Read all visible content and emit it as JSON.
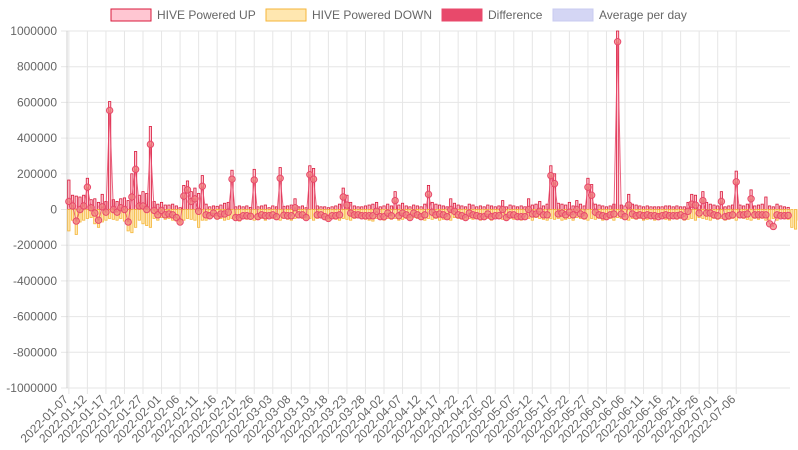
{
  "chart_data": {
    "type": "bar",
    "title": "",
    "xlabel": "",
    "ylabel": "",
    "ylim": [
      -1000000,
      1000000
    ],
    "y_ticks": [
      "1000000",
      "800000",
      "600000",
      "400000",
      "200000",
      "0",
      "-200000",
      "-400000",
      "-600000",
      "-800000",
      "-1000000"
    ],
    "x_tick_labels": [
      "2022-01-07",
      "2022-01-12",
      "2022-01-17",
      "2022-01-22",
      "2022-01-27",
      "2022-02-01",
      "2022-02-06",
      "2022-02-11",
      "2022-02-16",
      "2022-02-21",
      "2022-02-26",
      "2022-03-03",
      "2022-03-08",
      "2022-03-13",
      "2022-03-18",
      "2022-03-23",
      "2022-03-28",
      "2022-04-02",
      "2022-04-07",
      "2022-04-12",
      "2022-04-17",
      "2022-04-22",
      "2022-04-27",
      "2022-05-02",
      "2022-05-07",
      "2022-05-12",
      "2022-05-17",
      "2022-05-22",
      "2022-05-27",
      "2022-06-01",
      "2022-06-06",
      "2022-06-11",
      "2022-06-16",
      "2022-06-21",
      "2022-06-26",
      "2022-07-01",
      "2022-07-06"
    ],
    "start_date": "2022-01-07",
    "grid": true,
    "legend_position": "top",
    "colors": {
      "up_fill": "#ffc6d2",
      "up_border": "#d81b3c",
      "down_fill": "#ffe7b0",
      "down_border": "#f5b63a",
      "diff": "#e8496b",
      "avg_fill": "#d4d6f4",
      "avg_border": "#c8cbf0",
      "point_fill": "#f08080",
      "point_border": "#e8496b",
      "grid": "#e6e6e6",
      "axis_text": "#666666"
    },
    "series": [
      {
        "name": "HIVE Powered UP",
        "values": [
          165000,
          80000,
          75000,
          70000,
          80000,
          175000,
          55000,
          60000,
          40000,
          85000,
          45000,
          605000,
          55000,
          45000,
          60000,
          65000,
          50000,
          200000,
          325000,
          80000,
          100000,
          90000,
          465000,
          45000,
          30000,
          40000,
          25000,
          25000,
          30000,
          20000,
          10000,
          135000,
          160000,
          100000,
          120000,
          90000,
          190000,
          30000,
          15000,
          20000,
          18000,
          25000,
          35000,
          40000,
          220000,
          15000,
          20000,
          15000,
          20000,
          12000,
          225000,
          15000,
          20000,
          25000,
          10000,
          20000,
          15000,
          235000,
          18000,
          20000,
          25000,
          60000,
          15000,
          20000,
          10000,
          245000,
          230000,
          20000,
          15000,
          15000,
          10000,
          15000,
          20000,
          30000,
          120000,
          80000,
          40000,
          20000,
          15000,
          15000,
          20000,
          25000,
          30000,
          40000,
          15000,
          20000,
          30000,
          20000,
          100000,
          25000,
          35000,
          20000,
          15000,
          25000,
          20000,
          15000,
          30000,
          135000,
          40000,
          30000,
          25000,
          20000,
          15000,
          60000,
          35000,
          25000,
          20000,
          15000,
          30000,
          25000,
          15000,
          20000,
          15000,
          25000,
          20000,
          15000,
          20000,
          50000,
          15000,
          25000,
          20000,
          15000,
          20000,
          15000,
          60000,
          25000,
          30000,
          45000,
          20000,
          30000,
          245000,
          200000,
          35000,
          30000,
          25000,
          40000,
          20000,
          50000,
          30000,
          20000,
          175000,
          140000,
          30000,
          25000,
          20000,
          15000,
          20000,
          30000,
          1000000,
          25000,
          20000,
          85000,
          30000,
          25000,
          20000,
          15000,
          20000,
          15000,
          15000,
          15000,
          15000,
          20000,
          20000,
          15000,
          20000,
          15000,
          15000,
          40000,
          85000,
          80000,
          25000,
          100000,
          40000,
          30000,
          25000,
          20000,
          100000,
          15000,
          20000,
          25000,
          215000,
          25000,
          20000,
          30000,
          110000,
          20000,
          25000,
          30000,
          70000,
          20000,
          15000,
          30000,
          20000,
          15000,
          12000
        ]
      },
      {
        "name": "HIVE Powered DOWN",
        "values": [
          -120000,
          -60000,
          -140000,
          -70000,
          -60000,
          -50000,
          -45000,
          -80000,
          -100000,
          -70000,
          -60000,
          -50000,
          -55000,
          -60000,
          -50000,
          -65000,
          -120000,
          -130000,
          -100000,
          -60000,
          -80000,
          -90000,
          -100000,
          -50000,
          -60000,
          -45000,
          -55000,
          -50000,
          -60000,
          -65000,
          -80000,
          -60000,
          -50000,
          -55000,
          -60000,
          -100000,
          -60000,
          -60000,
          -50000,
          -40000,
          -55000,
          -50000,
          -60000,
          -55000,
          -50000,
          -60000,
          -65000,
          -50000,
          -55000,
          -50000,
          -60000,
          -55000,
          -50000,
          -60000,
          -45000,
          -50000,
          -55000,
          -60000,
          -50000,
          -55000,
          -60000,
          -50000,
          -45000,
          -50000,
          -55000,
          -50000,
          -60000,
          -50000,
          -45000,
          -55000,
          -60000,
          -50000,
          -55000,
          -60000,
          -50000,
          -55000,
          -60000,
          -50000,
          -45000,
          -50000,
          -55000,
          -60000,
          -65000,
          -50000,
          -55000,
          -60000,
          -50000,
          -55000,
          -50000,
          -60000,
          -55000,
          -50000,
          -60000,
          -45000,
          -50000,
          -55000,
          -60000,
          -50000,
          -55000,
          -50000,
          -60000,
          -55000,
          -50000,
          -60000,
          -45000,
          -50000,
          -55000,
          -60000,
          -50000,
          -55000,
          -50000,
          -60000,
          -55000,
          -50000,
          -60000,
          -45000,
          -50000,
          -55000,
          -60000,
          -50000,
          -55000,
          -50000,
          -60000,
          -55000,
          -50000,
          -60000,
          -45000,
          -50000,
          -55000,
          -60000,
          -50000,
          -55000,
          -50000,
          -60000,
          -55000,
          -50000,
          -60000,
          -45000,
          -50000,
          -55000,
          -60000,
          -50000,
          -55000,
          -50000,
          -60000,
          -55000,
          -50000,
          -60000,
          -45000,
          -50000,
          -55000,
          -60000,
          -50000,
          -55000,
          -50000,
          -60000,
          -55000,
          -50000,
          -60000,
          -45000,
          -50000,
          -55000,
          -60000,
          -50000,
          -55000,
          -50000,
          -60000,
          -55000,
          -50000,
          -60000,
          -45000,
          -50000,
          -55000,
          -60000,
          -50000,
          -55000,
          -50000,
          -60000,
          -55000,
          -50000,
          -60000,
          -45000,
          -50000,
          -55000,
          -60000,
          -50000,
          -55000,
          -50000,
          -60000,
          -55000,
          -50000,
          -60000,
          -45000,
          -50000,
          -55000,
          -100000,
          -110000,
          -60000,
          -55000,
          -50000,
          -45000
        ]
      },
      {
        "name": "Difference",
        "values": [
          45000,
          20000,
          -65000,
          0,
          20000,
          125000,
          10000,
          -20000,
          -60000,
          15000,
          -15000,
          555000,
          0,
          -15000,
          10000,
          0,
          -70000,
          70000,
          225000,
          20000,
          20000,
          0,
          365000,
          -5000,
          -30000,
          -5000,
          -30000,
          -25000,
          -30000,
          -45000,
          -70000,
          75000,
          110000,
          45000,
          60000,
          -10000,
          130000,
          -30000,
          -35000,
          -20000,
          -37000,
          -25000,
          -25000,
          -15000,
          170000,
          -45000,
          -45000,
          -35000,
          -35000,
          -38000,
          165000,
          -40000,
          -30000,
          -35000,
          -35000,
          -30000,
          -40000,
          175000,
          -32000,
          -35000,
          -35000,
          10000,
          -30000,
          -30000,
          -45000,
          195000,
          170000,
          -30000,
          -30000,
          -40000,
          -50000,
          -35000,
          -35000,
          -30000,
          70000,
          25000,
          -20000,
          -30000,
          -30000,
          -35000,
          -35000,
          -35000,
          -35000,
          -10000,
          -40000,
          -40000,
          -20000,
          -35000,
          50000,
          -35000,
          -20000,
          -30000,
          -45000,
          -20000,
          -30000,
          -40000,
          -30000,
          85000,
          -15000,
          -30000,
          -25000,
          -30000,
          -40000,
          0,
          -10000,
          -30000,
          -35000,
          -45000,
          -20000,
          -30000,
          -35000,
          -40000,
          -40000,
          -25000,
          -40000,
          -35000,
          -35000,
          0,
          -45000,
          -30000,
          -30000,
          -40000,
          -40000,
          -40000,
          0,
          -25000,
          -25000,
          -10000,
          -30000,
          -30000,
          190000,
          145000,
          -25000,
          -20000,
          -30000,
          -15000,
          -30000,
          0,
          -25000,
          -35000,
          125000,
          80000,
          -15000,
          -30000,
          -35000,
          -40000,
          -30000,
          -25000,
          940000,
          -25000,
          -40000,
          25000,
          -25000,
          -35000,
          -30000,
          -35000,
          -30000,
          -35000,
          -35000,
          -40000,
          -35000,
          -30000,
          -35000,
          -35000,
          -35000,
          -30000,
          -40000,
          -10000,
          30000,
          25000,
          -20000,
          50000,
          -20000,
          -20000,
          -30000,
          -35000,
          45000,
          -40000,
          -35000,
          -30000,
          155000,
          -30000,
          -30000,
          -25000,
          60000,
          -30000,
          -30000,
          -30000,
          -30000,
          -80000,
          -95000,
          -30000,
          -35000,
          -35000,
          -33000
        ]
      },
      {
        "name": "Average per day",
        "values": []
      }
    ]
  }
}
